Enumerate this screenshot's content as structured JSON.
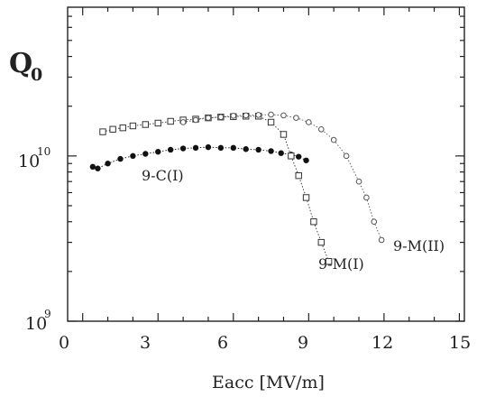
{
  "chart_data": {
    "type": "scatter",
    "ylabel": "Q",
    "ylabel_subscript": "0",
    "xlabel": "Eacc  [MV/m]",
    "x_ticks": [
      "0",
      "3",
      "6",
      "9",
      "12",
      "15"
    ],
    "y_tick_labels": [
      {
        "base": "10",
        "exp": "10"
      },
      {
        "base": "10",
        "exp": "9"
      }
    ],
    "xlim": [
      -0.6,
      15.2
    ],
    "ylim_log10": [
      9.0,
      10.9
    ],
    "y_scale": "log",
    "grid": false,
    "series": [
      {
        "name": "9-C(I)",
        "marker": "filled-circle",
        "color": "#111111",
        "x": [
          0.4,
          0.6,
          1.0,
          1.5,
          2.0,
          2.5,
          3.0,
          3.5,
          4.0,
          4.5,
          5.0,
          5.5,
          6.0,
          6.5,
          7.0,
          7.5,
          7.9,
          8.3,
          8.6,
          8.9
        ],
        "y": [
          8600000000.0,
          8400000000.0,
          9000000000.0,
          9600000000.0,
          10000000000.0,
          10300000000.0,
          10600000000.0,
          10900000000.0,
          11100000000.0,
          11200000000.0,
          11300000000.0,
          11200000000.0,
          11200000000.0,
          11000000000.0,
          10900000000.0,
          10700000000.0,
          10400000000.0,
          10200000000.0,
          9900000000.0,
          9400000000.0
        ]
      },
      {
        "name": "9-M(I)",
        "marker": "open-square",
        "color": "#333333",
        "x": [
          0.8,
          1.2,
          1.6,
          2.0,
          2.5,
          3.0,
          3.5,
          4.0,
          4.5,
          5.0,
          5.5,
          6.0,
          6.5,
          7.0,
          7.5,
          8.0,
          8.3,
          8.6,
          8.9,
          9.2,
          9.5,
          9.8
        ],
        "y": [
          14000000000.0,
          14500000000.0,
          14800000000.0,
          15200000000.0,
          15500000000.0,
          15800000000.0,
          16200000000.0,
          16500000000.0,
          16700000000.0,
          17000000000.0,
          17200000000.0,
          17300000000.0,
          17400000000.0,
          17400000000.0,
          16000000000.0,
          13500000000.0,
          10000000000.0,
          7600000000.0,
          5600000000.0,
          4000000000.0,
          3000000000.0,
          2300000000.0
        ]
      },
      {
        "name": "9-M(II)",
        "marker": "open-circle",
        "color": "#555555",
        "x": [
          4.0,
          4.5,
          5.0,
          5.5,
          6.0,
          6.5,
          7.0,
          7.5,
          8.0,
          8.5,
          9.0,
          9.5,
          10.0,
          10.5,
          11.0,
          11.3,
          11.6,
          11.9
        ],
        "y": [
          16000000000.0,
          16500000000.0,
          17000000000.0,
          17200000000.0,
          17500000000.0,
          17600000000.0,
          17700000000.0,
          17800000000.0,
          17600000000.0,
          17000000000.0,
          16000000000.0,
          14500000000.0,
          12500000000.0,
          10000000000.0,
          7000000000.0,
          5600000000.0,
          4000000000.0,
          3100000000.0
        ]
      }
    ],
    "annotations": [
      "9-C(I)",
      "9-M(I)",
      "9-M(II)"
    ]
  }
}
